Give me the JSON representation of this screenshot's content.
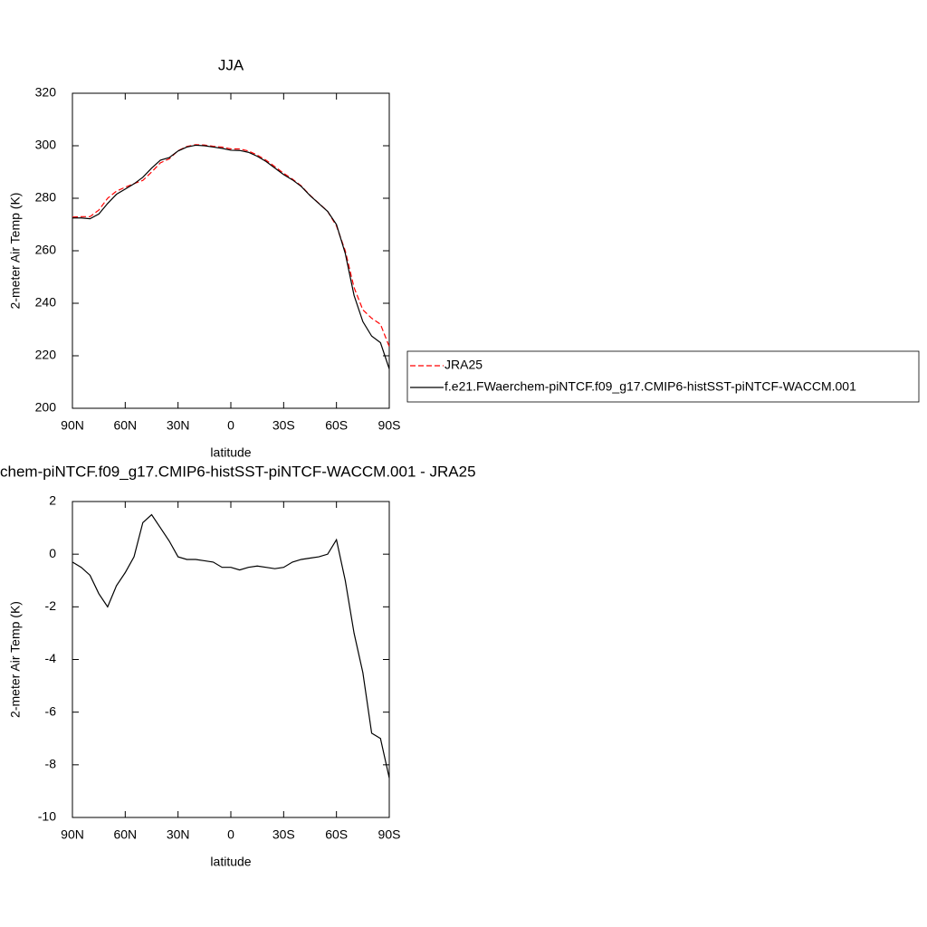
{
  "chart_data": [
    {
      "type": "line",
      "title": "JJA",
      "xlabel": "latitude",
      "ylabel": "2-meter Air Temp (K)",
      "x": [
        90,
        85,
        80,
        75,
        70,
        65,
        60,
        55,
        50,
        45,
        40,
        35,
        30,
        25,
        20,
        15,
        10,
        5,
        0,
        -5,
        -10,
        -15,
        -20,
        -25,
        -30,
        -35,
        -40,
        -45,
        -50,
        -55,
        -60,
        -65,
        -70,
        -75,
        -80,
        -85,
        -90
      ],
      "series": [
        {
          "name": "JRA25",
          "color": "#ff0000",
          "style": "dashed",
          "values": [
            272.8,
            273,
            273,
            275.5,
            280,
            282.7,
            284.2,
            285.6,
            286.8,
            290,
            293.5,
            295,
            298.1,
            299.7,
            300.4,
            300.25,
            299.8,
            299.5,
            298.8,
            298.8,
            298,
            296.45,
            294.5,
            292.05,
            289.5,
            287.3,
            284.7,
            281.15,
            278.1,
            275,
            269.45,
            260,
            246,
            237.5,
            234.3,
            232,
            223.5
          ]
        },
        {
          "name": "f.e21.FWaerchem-piNTCF.f09_g17.CMIP6-histSST-piNTCF-WACCM.001",
          "color": "#000000",
          "style": "solid",
          "values": [
            272.5,
            272.5,
            272.2,
            274,
            278,
            281.5,
            283.5,
            285.5,
            288,
            291.5,
            294.5,
            295.5,
            298,
            299.5,
            300.2,
            300,
            299.5,
            299,
            298.3,
            298.2,
            297.5,
            296,
            294,
            291.5,
            289,
            287,
            284.5,
            281,
            278,
            275,
            270,
            259,
            243,
            233,
            227.5,
            225,
            215
          ]
        }
      ],
      "xlim": [
        90,
        -90
      ],
      "xticks": [
        {
          "value": 90,
          "label": "90N"
        },
        {
          "value": 60,
          "label": "60N"
        },
        {
          "value": 30,
          "label": "30N"
        },
        0,
        {
          "value": -30,
          "label": "30S"
        },
        {
          "value": -60,
          "label": "60S"
        },
        {
          "value": -90,
          "label": "90S"
        }
      ],
      "ylim": [
        200,
        320
      ],
      "yticks": [
        200,
        220,
        240,
        260,
        280,
        300,
        320
      ],
      "legend": "right"
    },
    {
      "type": "line",
      "title": "chem-piNTCF.f09_g17.CMIP6-histSST-piNTCF-WACCM.001 - JRA25",
      "xlabel": "latitude",
      "ylabel": "2-meter Air Temp (K)",
      "x": [
        90,
        85,
        80,
        75,
        70,
        65,
        60,
        55,
        50,
        45,
        40,
        35,
        30,
        25,
        20,
        15,
        10,
        5,
        0,
        -5,
        -10,
        -15,
        -20,
        -25,
        -30,
        -35,
        -40,
        -45,
        -50,
        -55,
        -60,
        -65,
        -70,
        -75,
        -80,
        -85,
        -90
      ],
      "series": [
        {
          "color": "#000000",
          "style": "solid",
          "values": [
            -0.3,
            -0.5,
            -0.8,
            -1.5,
            -2.0,
            -1.2,
            -0.7,
            -0.1,
            1.2,
            1.5,
            1.0,
            0.5,
            -0.1,
            -0.2,
            -0.2,
            -0.25,
            -0.3,
            -0.5,
            -0.5,
            -0.6,
            -0.5,
            -0.45,
            -0.5,
            -0.55,
            -0.5,
            -0.3,
            -0.2,
            -0.15,
            -0.1,
            0.0,
            0.55,
            -1,
            -3,
            -4.5,
            -6.8,
            -7,
            -8.5
          ]
        }
      ],
      "xlim": [
        90,
        -90
      ],
      "xticks": [
        {
          "value": 90,
          "label": "90N"
        },
        {
          "value": 60,
          "label": "60N"
        },
        {
          "value": 30,
          "label": "30N"
        },
        0,
        {
          "value": -30,
          "label": "30S"
        },
        {
          "value": -60,
          "label": "60S"
        },
        {
          "value": -90,
          "label": "90S"
        }
      ],
      "ylim": [
        -10,
        2
      ],
      "yticks": [
        -10,
        -8,
        -6,
        -4,
        -2,
        0,
        2
      ]
    }
  ]
}
